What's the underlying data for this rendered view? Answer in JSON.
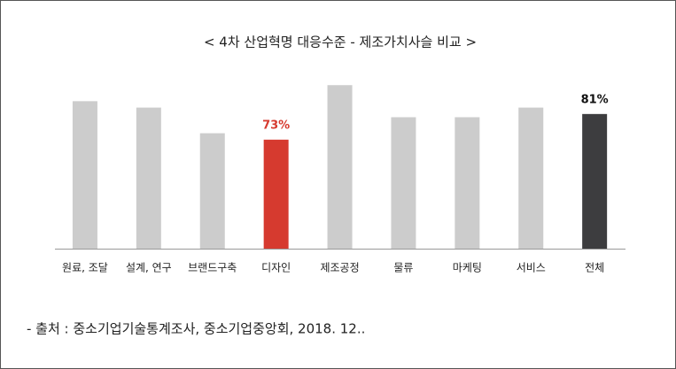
{
  "chart_data": {
    "type": "bar",
    "title": "< 4차 산업혁명 대응수준 - 제조가치사슬 비교 >",
    "categories": [
      "원료, 조달",
      "설계, 연구",
      "브랜드구축",
      "디자인",
      "제조공정",
      "물류",
      "마케팅",
      "서비스",
      "전체"
    ],
    "values": [
      85,
      83,
      75,
      73,
      90,
      80,
      80,
      83,
      81
    ],
    "value_labels": [
      null,
      null,
      null,
      "73%",
      null,
      null,
      null,
      null,
      "81%"
    ],
    "colors": [
      "#cccccc",
      "#cccccc",
      "#cccccc",
      "#d63a2f",
      "#cccccc",
      "#cccccc",
      "#cccccc",
      "#cccccc",
      "#3d3d3f"
    ],
    "label_colors": [
      null,
      null,
      null,
      "#d63a2f",
      null,
      null,
      null,
      null,
      "#111111"
    ],
    "ylim": [
      39,
      100
    ],
    "source": "- 출처 : 중소기업기술통계조사, 중소기업중앙회, 2018. 12.."
  }
}
